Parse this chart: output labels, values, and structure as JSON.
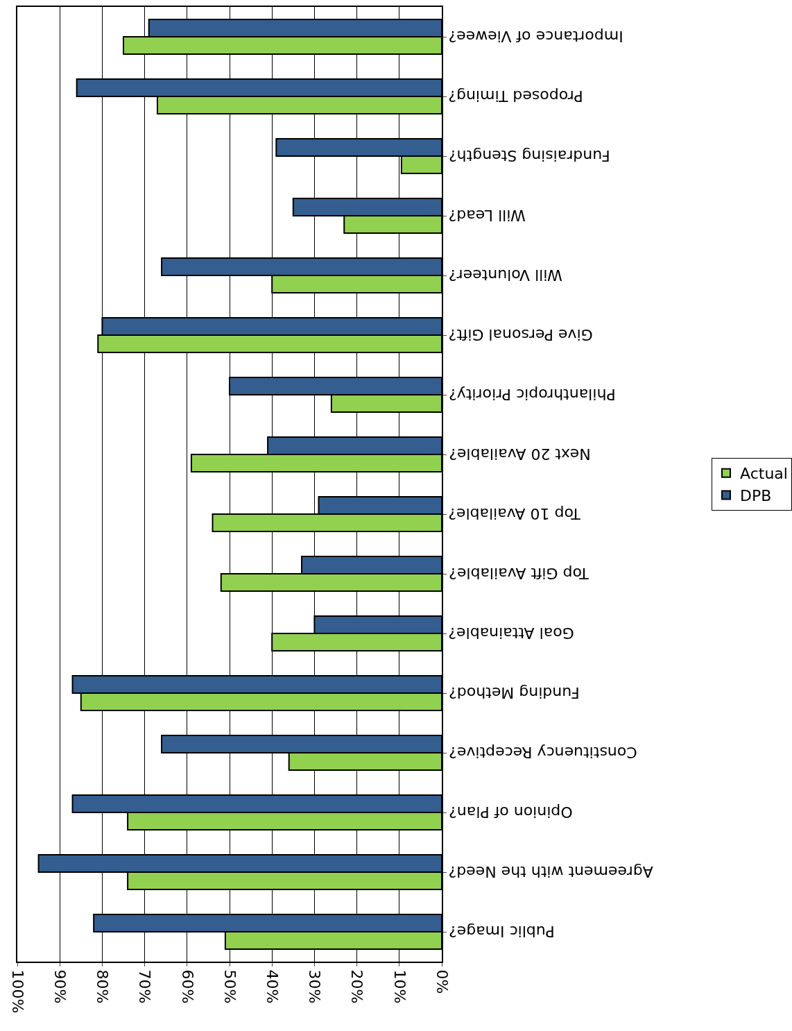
{
  "chart_data": {
    "type": "bar",
    "orientation": "horizontal",
    "categories": [
      "Importance of Viewee?",
      "Proposed Timing?",
      "Fundraising Stength?",
      "Will Lead?",
      "Will Volunteer?",
      "Give Personal Gift?",
      "Philanthropic Priority?",
      "Next 20 Available?",
      "Top 10 Available?",
      "Top Gift Available?",
      "Goal Attainable?",
      "Funding Method?",
      "Constituency Receptive?",
      "Opinion of Plan?",
      "Agreement with the Need?",
      "Public Image?"
    ],
    "series": [
      {
        "name": "DPB",
        "color": "#335e8f",
        "values": [
          69,
          86,
          39,
          35,
          66,
          80,
          50,
          41,
          29,
          33,
          30,
          87,
          66,
          87,
          95,
          82
        ]
      },
      {
        "name": "Actual",
        "color": "#92d050",
        "values": [
          75,
          67,
          9.5,
          23,
          40,
          81,
          26,
          59,
          54,
          52,
          40,
          85,
          36,
          74,
          74,
          51
        ]
      }
    ],
    "xlim": [
      100,
      0
    ],
    "xticks": [
      {
        "value": 0,
        "label": "0%"
      },
      {
        "value": 10,
        "label": "10%"
      },
      {
        "value": 20,
        "label": "20%"
      },
      {
        "value": 30,
        "label": "30%"
      },
      {
        "value": 40,
        "label": "40%"
      },
      {
        "value": 50,
        "label": "50%"
      },
      {
        "value": 60,
        "label": "60%"
      },
      {
        "value": 70,
        "label": "70%"
      },
      {
        "value": 80,
        "label": "80%"
      },
      {
        "value": 90,
        "label": "90%"
      },
      {
        "value": 100,
        "label": "100%"
      }
    ],
    "grid": "x",
    "legend": "right"
  }
}
